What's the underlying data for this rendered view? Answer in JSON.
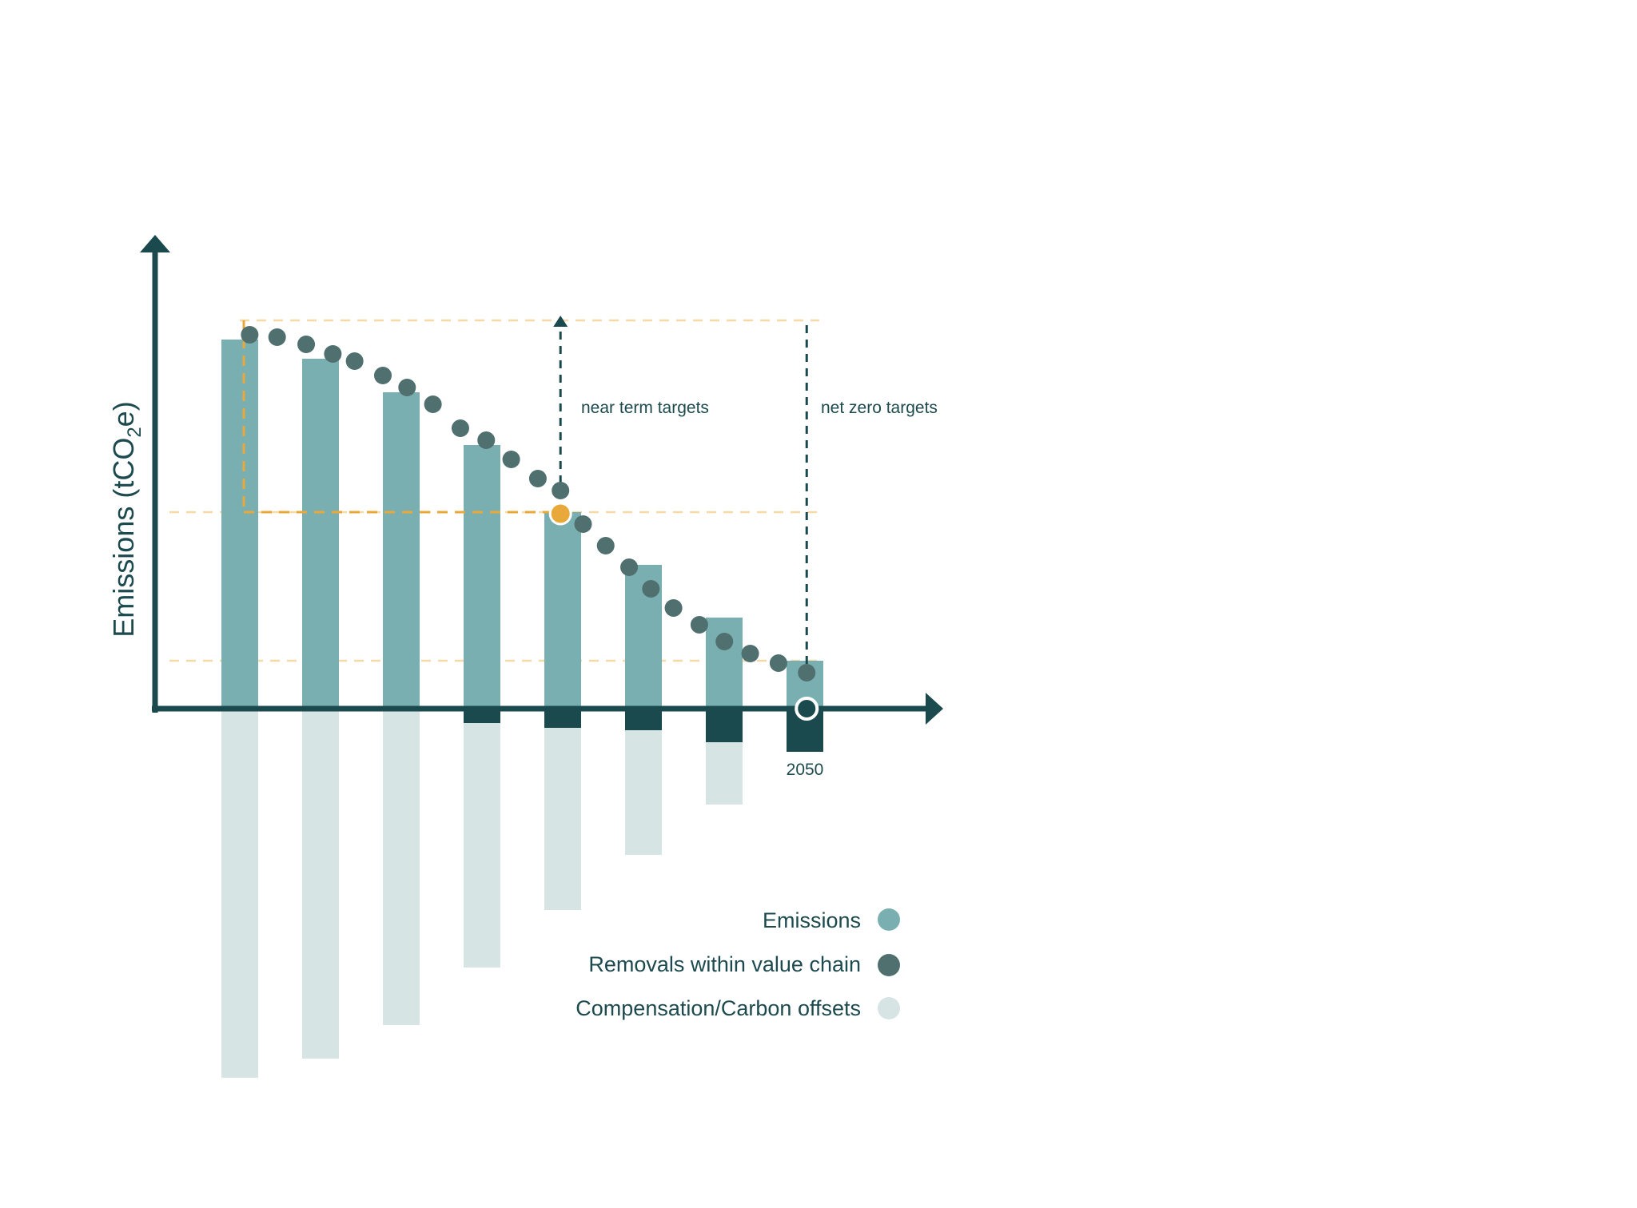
{
  "chart_data": {
    "type": "bar",
    "title": "",
    "xlabel": "",
    "ylabel": "Emissions (tCO",
    "ylabel_sub": "2",
    "ylabel_tail": "e)",
    "ylim": [
      -80,
      80
    ],
    "categories": [
      "",
      "",
      "",
      "",
      "",
      "",
      "",
      "2050"
    ],
    "series": [
      {
        "name": "Emissions",
        "color": "#7aafb1",
        "values": [
          77,
          73,
          66,
          55,
          41,
          30,
          19,
          10
        ]
      },
      {
        "name": "Removals within value chain",
        "color": "#1b4a4e",
        "values": [
          0,
          0,
          0,
          -3,
          -4,
          -4.5,
          -7,
          -9
        ]
      },
      {
        "name": "Compensation/Carbon offsets",
        "color": "#d6e4e4",
        "values": [
          -77,
          -73,
          -66,
          -51,
          -38,
          -26,
          -13,
          0
        ]
      }
    ],
    "pathway": {
      "color": "#4f706f",
      "points": [
        [
          0.35,
          78
        ],
        [
          0.69,
          77.5
        ],
        [
          1.05,
          76
        ],
        [
          1.38,
          74
        ],
        [
          1.65,
          72.5
        ],
        [
          2.0,
          69.5
        ],
        [
          2.3,
          67
        ],
        [
          2.62,
          63.5
        ],
        [
          2.96,
          58.5
        ],
        [
          3.28,
          56
        ],
        [
          3.59,
          52
        ],
        [
          3.92,
          48
        ],
        [
          4.2,
          45.5
        ],
        [
          4.48,
          38.5
        ],
        [
          4.76,
          34
        ],
        [
          5.05,
          29.5
        ],
        [
          5.32,
          25
        ],
        [
          5.6,
          21
        ],
        [
          5.92,
          17.5
        ],
        [
          6.23,
          14
        ],
        [
          6.55,
          11.5
        ],
        [
          6.9,
          9.5
        ],
        [
          7.25,
          7.5
        ]
      ]
    },
    "near_term_point": {
      "x": 4.2,
      "y": 41,
      "color": "#e8a93a"
    },
    "net_zero_point": {
      "x": 7.25,
      "y": 0
    },
    "reference_lines": [
      {
        "y": 81,
        "color": "#f5d9a6"
      },
      {
        "y": 41,
        "color": "#f5d9a6"
      },
      {
        "y": 10,
        "color": "#f5d9a6"
      }
    ],
    "annotations": [
      {
        "text": "near term targets",
        "x": 4.2,
        "y_from": 41,
        "y_to": 80
      },
      {
        "text": "net zero targets",
        "x": 7.25,
        "y_from": 80,
        "y_to": 8
      }
    ],
    "legend": {
      "placement": "bottom-right",
      "items": [
        {
          "label": "Emissions",
          "color": "#7aafb1"
        },
        {
          "label": "Removals within value chain",
          "color": "#4f706f"
        },
        {
          "label": "Compensation/Carbon offsets",
          "color": "#d6e4e4"
        }
      ]
    },
    "axis_color": "#1b4a4e",
    "accent_color": "#e8a93a"
  }
}
